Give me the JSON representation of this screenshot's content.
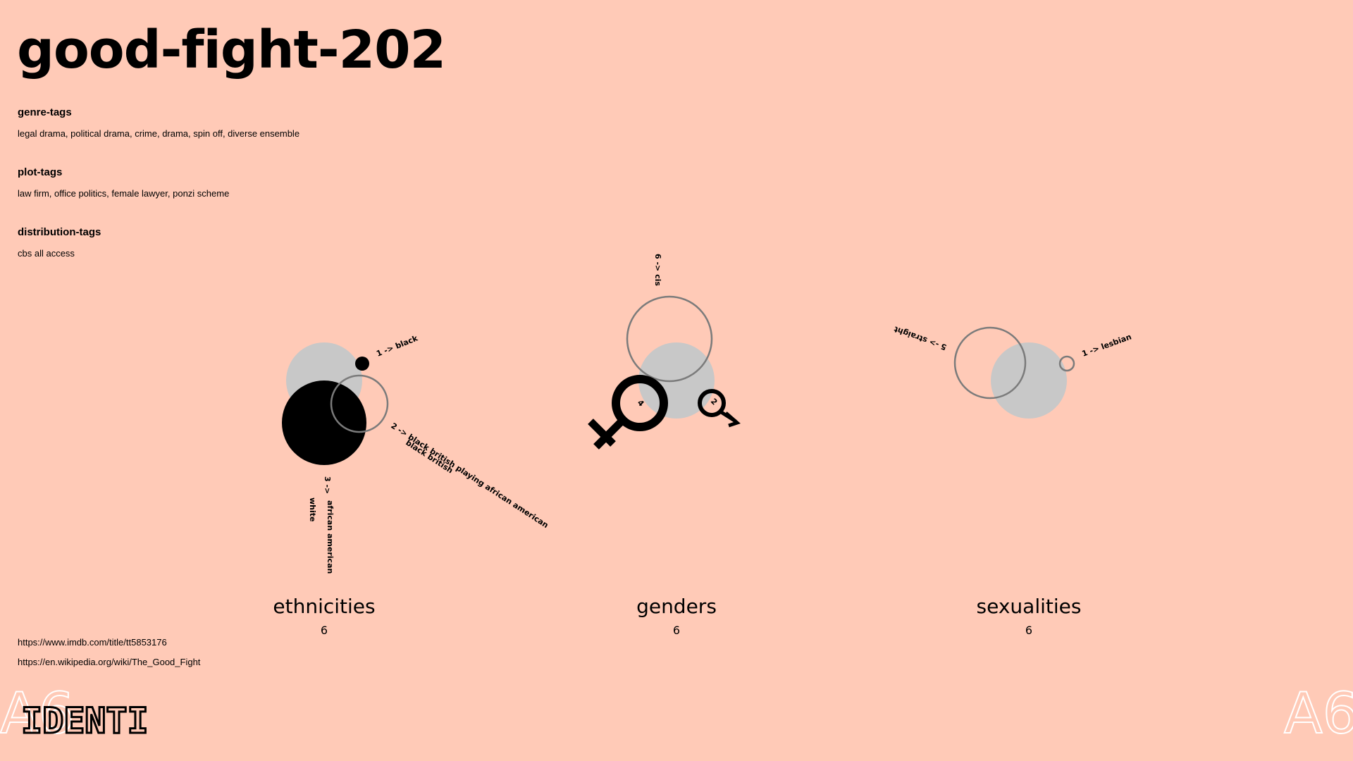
{
  "title": "good-fight-202",
  "tags": {
    "genre": {
      "heading": "genre-tags",
      "values": "legal drama, political drama, crime, drama, spin off, diverse ensemble"
    },
    "plot": {
      "heading": "plot-tags",
      "values": "law firm, office politics, female lawyer, ponzi scheme"
    },
    "distribution": {
      "heading": "distribution-tags",
      "values": "cbs all access"
    }
  },
  "links": {
    "imdb": "https://www.imdb.com/title/tt5853176",
    "wikipedia": "https://en.wikipedia.org/wiki/The_Good_Fight"
  },
  "categories": {
    "ethnicities": {
      "label": "ethnicities",
      "count": "6",
      "annotations": {
        "black": "1 ->  black",
        "bbpaa": "2 ->  black british playing african american",
        "bb": "black british",
        "aa_count": "3 ->",
        "aa": "african american",
        "white": "white"
      }
    },
    "genders": {
      "label": "genders",
      "count": "6",
      "annotations": {
        "cis": "6 -> cis",
        "female": "4",
        "male": "2"
      }
    },
    "sexualities": {
      "label": "sexualities",
      "count": "6",
      "annotations": {
        "straight": "5 -> straight",
        "lesbian": "1 ->  lesbian"
      }
    }
  },
  "logo": {
    "text": "IDENTI"
  },
  "colors": {
    "background": "#ffcab7",
    "gray_fill": "#c8c8c8",
    "outline": "#7b7b7b",
    "ink": "#000000"
  }
}
